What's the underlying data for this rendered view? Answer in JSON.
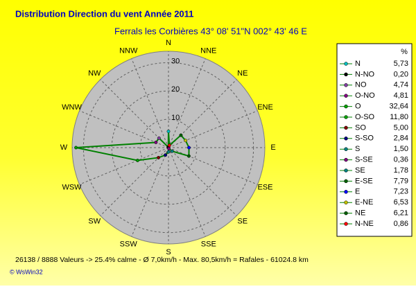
{
  "chart_data": {
    "type": "radar",
    "title": "Distribution Direction du vent   Année 2011",
    "subtitle": "Ferrals les Corbières 43° 08' 51\"N  002° 43' 46 E",
    "direction_labels": [
      "N",
      "NNE",
      "NE",
      "ENE",
      "E",
      "ESE",
      "SE",
      "SSE",
      "S",
      "SSW",
      "SW",
      "WSW",
      "W",
      "WNW",
      "NW",
      "NNW"
    ],
    "rlim": [
      0,
      34
    ],
    "rticks": [
      10,
      20,
      30
    ],
    "grid": true,
    "legend_title": "%",
    "line_color": "#008000",
    "categories": [
      "N",
      "N-NO",
      "NO",
      "O-NO",
      "O",
      "O-SO",
      "SO",
      "S-SO",
      "S",
      "S-SE",
      "SE",
      "E-SE",
      "E",
      "E-NE",
      "NE",
      "N-NE"
    ],
    "values": [
      5.73,
      0.2,
      4.74,
      4.81,
      32.64,
      11.8,
      5.0,
      2.84,
      1.5,
      0.36,
      1.78,
      7.79,
      7.23,
      6.53,
      6.21,
      0.86
    ],
    "value_labels": [
      "5,73",
      "0,20",
      "4,74",
      "4,81",
      "32,64",
      "11,80",
      "5,00",
      "2,84",
      "1,50",
      "0,36",
      "1,78",
      "7,79",
      "7,23",
      "6,53",
      "6,21",
      "0,86"
    ],
    "colors": [
      "#00c0c0",
      "#000000",
      "#8040a0",
      "#800080",
      "#00a000",
      "#00a000",
      "#800000",
      "#000080",
      "#008080",
      "#800080",
      "#008080",
      "#006000",
      "#0000ff",
      "#c0c000",
      "#006000",
      "#ff0000"
    ],
    "footer": "26138 / 8888 Valeurs  -> 25.4% calme   -   Ø 7,0km/h  -  Max. 80,5km/h = Rafales   -   61024.8 km",
    "credit": "© WsWin32"
  }
}
